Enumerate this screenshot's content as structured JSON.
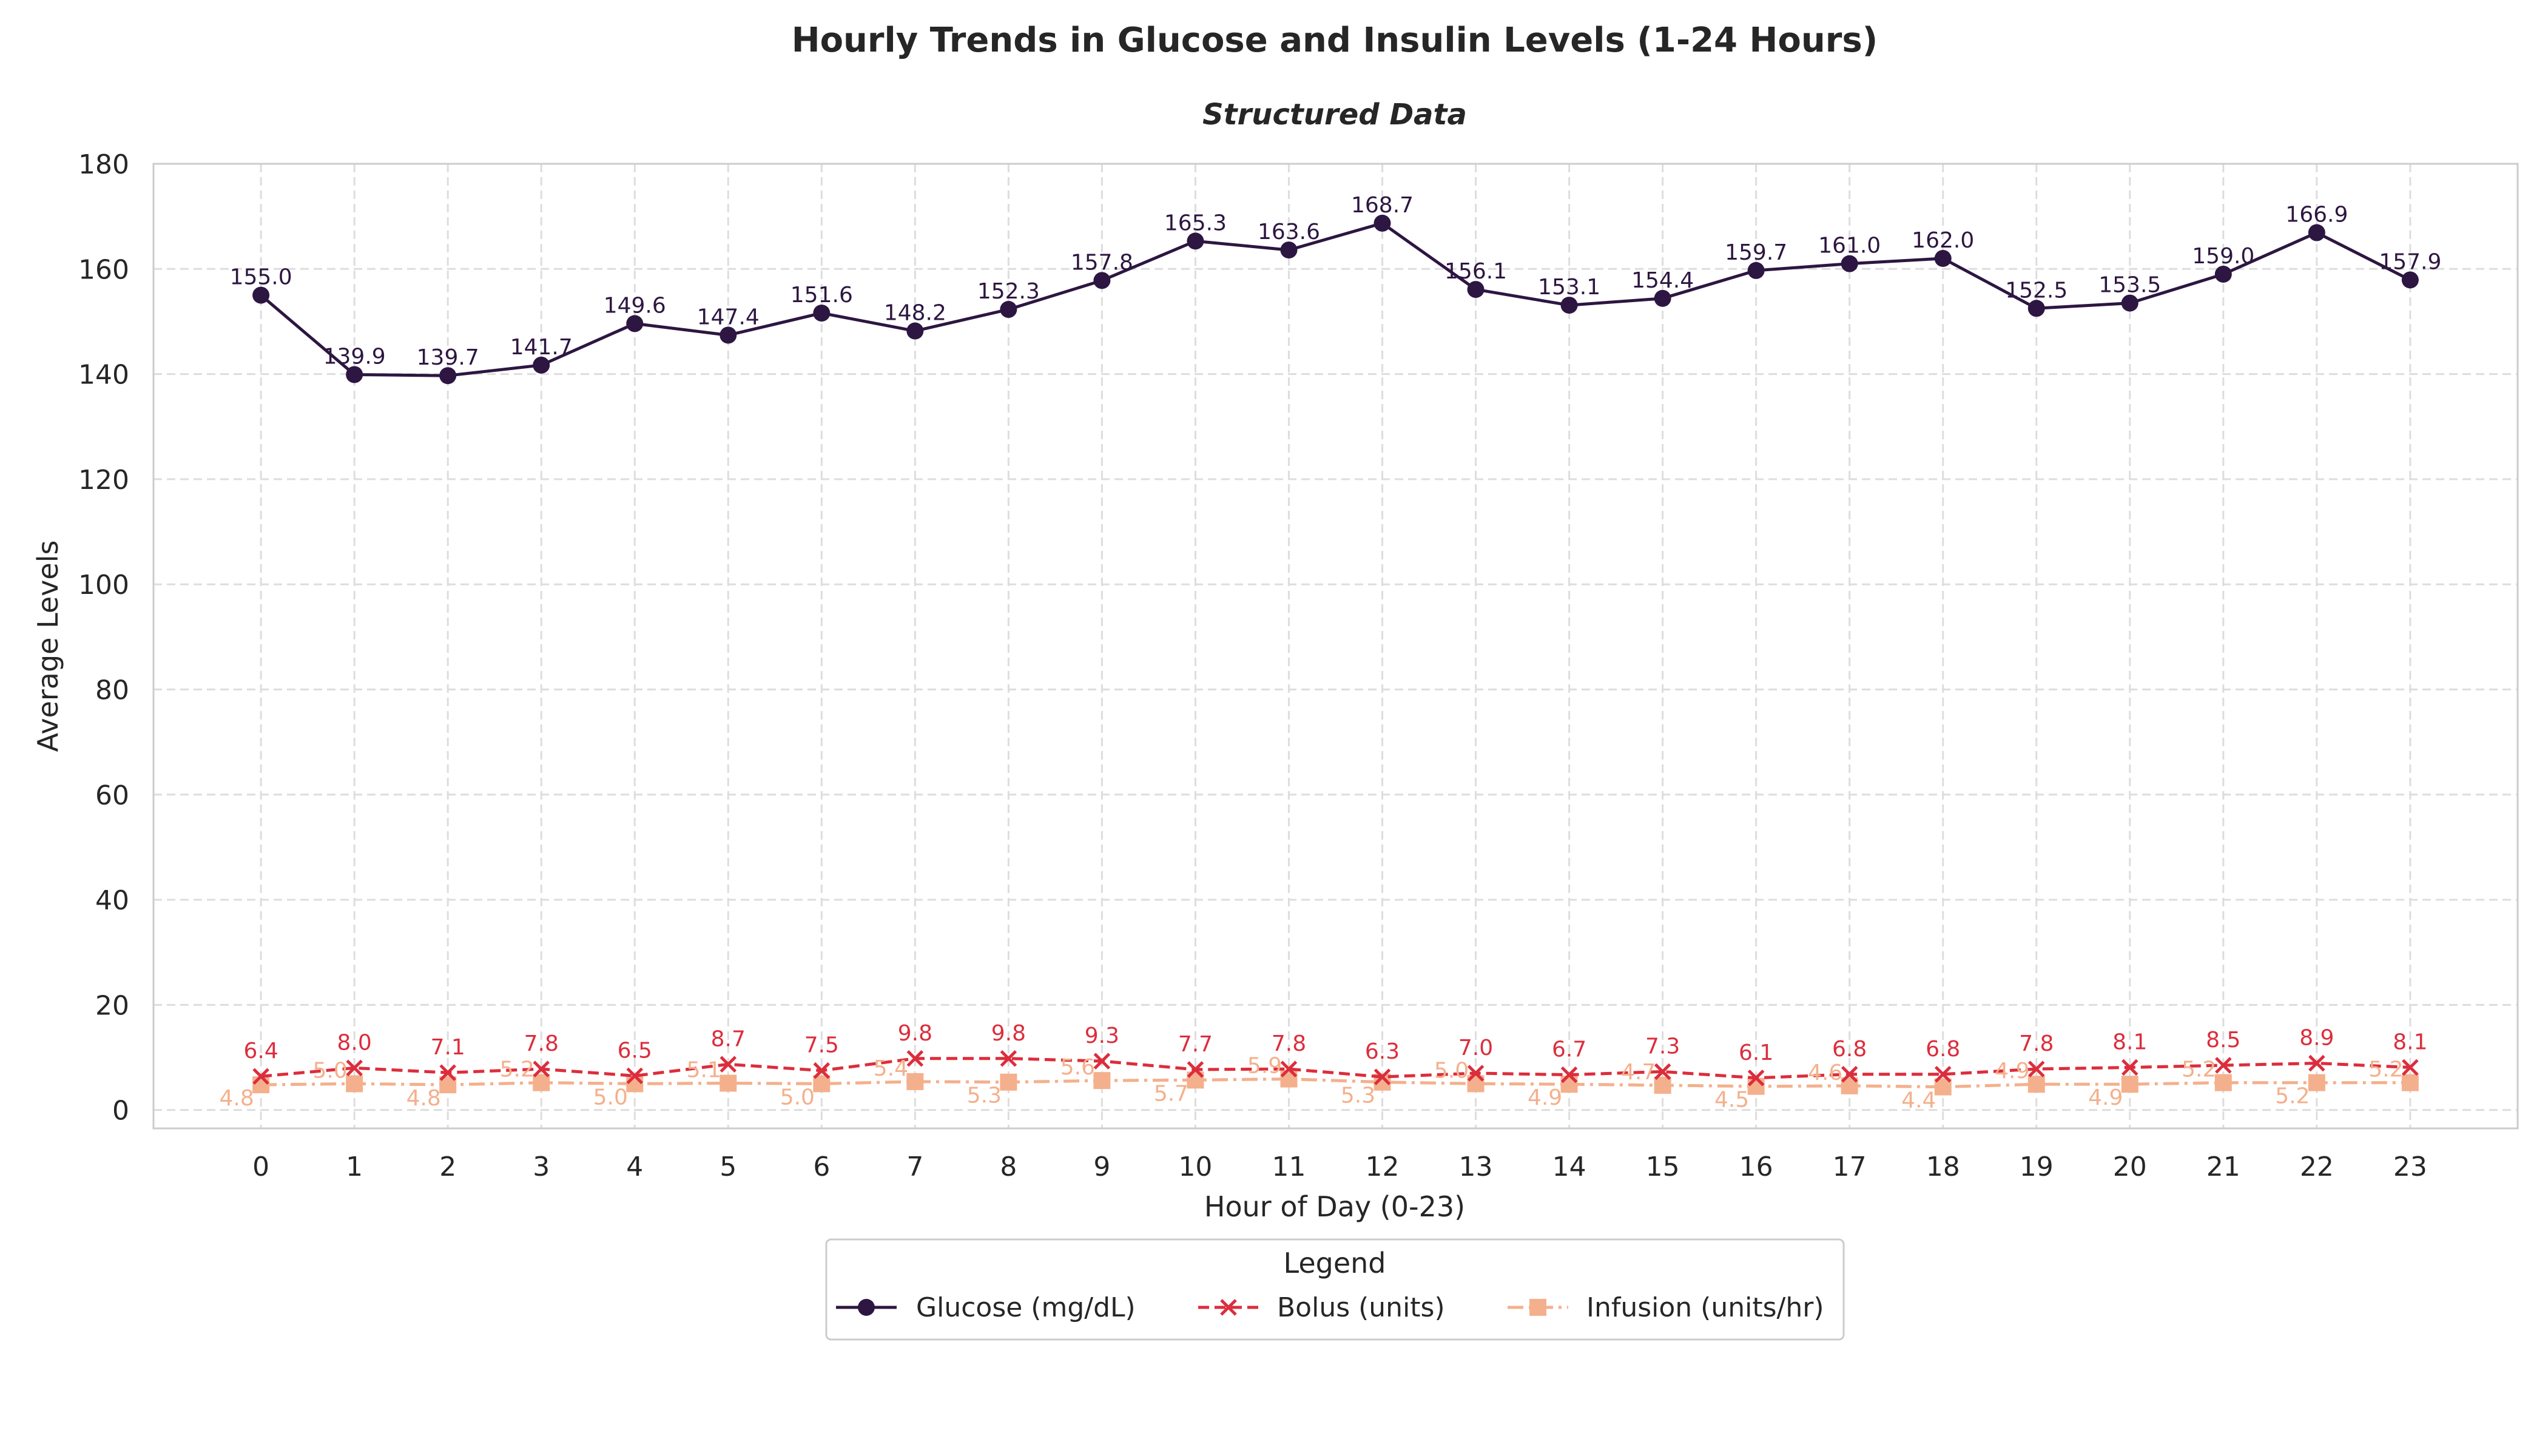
{
  "chart_data": {
    "type": "line",
    "title": "Hourly Trends in Glucose and Insulin Levels (1-24 Hours)",
    "subtitle": "Structured Data",
    "xlabel": "Hour of Day (0-23)",
    "ylabel": "Average Levels",
    "x": [
      0,
      1,
      2,
      3,
      4,
      5,
      6,
      7,
      8,
      9,
      10,
      11,
      12,
      13,
      14,
      15,
      16,
      17,
      18,
      19,
      20,
      21,
      22,
      23
    ],
    "ylim": [
      -3.5,
      180
    ],
    "yticks": [
      0,
      20,
      40,
      60,
      80,
      100,
      120,
      140,
      160,
      180
    ],
    "grid": true,
    "legend": {
      "title": "Legend",
      "position": "bottom-center"
    },
    "series": [
      {
        "name": "Glucose (mg/dL)",
        "color": "#2d1641",
        "marker": "circle",
        "line_style": "solid",
        "values": [
          155.0,
          139.9,
          139.7,
          141.7,
          149.6,
          147.4,
          151.6,
          148.2,
          152.3,
          157.8,
          165.3,
          163.6,
          168.7,
          156.1,
          153.1,
          154.4,
          159.7,
          161.0,
          162.0,
          152.5,
          153.5,
          159.0,
          166.9,
          157.9
        ]
      },
      {
        "name": "Bolus (units)",
        "color": "#dc2d3c",
        "marker": "x",
        "line_style": "dashed",
        "values": [
          6.4,
          8.0,
          7.1,
          7.8,
          6.5,
          8.7,
          7.5,
          9.8,
          9.8,
          9.3,
          7.7,
          7.8,
          6.3,
          7.0,
          6.7,
          7.3,
          6.1,
          6.8,
          6.8,
          7.8,
          8.1,
          8.5,
          8.9,
          8.1
        ]
      },
      {
        "name": "Infusion (units/hr)",
        "color": "#f4b08c",
        "marker": "square",
        "line_style": "dashdot",
        "values": [
          4.8,
          5.0,
          4.8,
          5.2,
          5.0,
          5.1,
          5.0,
          5.4,
          5.3,
          5.6,
          5.7,
          5.9,
          5.3,
          5.0,
          4.9,
          4.7,
          4.5,
          4.6,
          4.4,
          4.9,
          4.9,
          5.2,
          5.2,
          5.2
        ]
      }
    ]
  }
}
